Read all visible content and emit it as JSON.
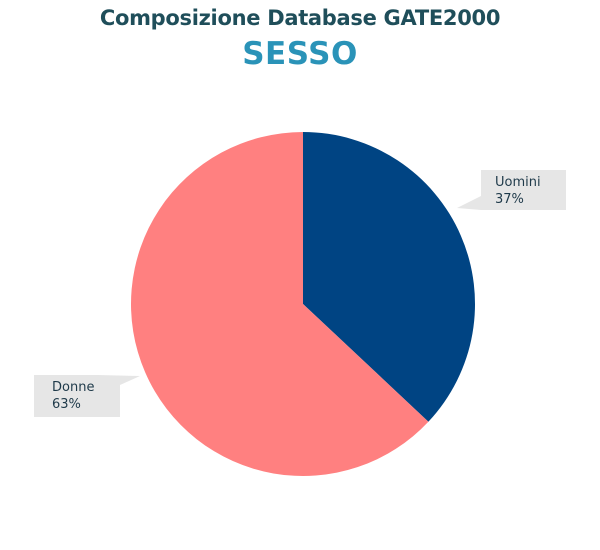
{
  "header": {
    "title": "Composizione Database GATE2000",
    "subtitle": "SESSO"
  },
  "chart_data": {
    "type": "pie",
    "title": "Composizione Database GATE2000",
    "subtitle": "SESSO",
    "slices": [
      {
        "label": "Uomini",
        "value": 37,
        "value_label": "37%",
        "color": "#004483"
      },
      {
        "label": "Donne",
        "value": 63,
        "value_label": "63%",
        "color": "#ff8080"
      }
    ],
    "start_angle": "12 o'clock",
    "direction": "clockwise",
    "legend": "none",
    "data_labels": "callouts",
    "callout_color": "#e6e6e6"
  }
}
